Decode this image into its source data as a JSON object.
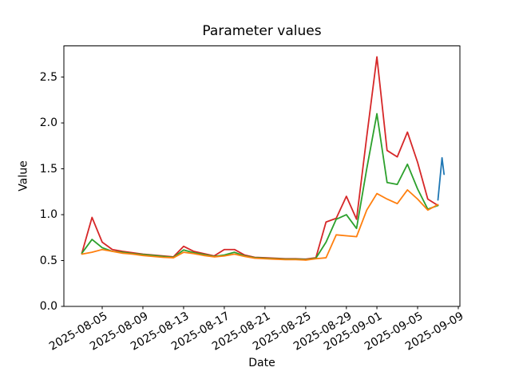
{
  "chart_data": {
    "type": "line",
    "title": "Parameter values",
    "xlabel": "Date",
    "ylabel": "Value",
    "grid": false,
    "legend": "none",
    "axes_box": true,
    "ylim": [
      0.0,
      2.84
    ],
    "y_ticks": [
      0.0,
      0.5,
      1.0,
      1.5,
      2.0,
      2.5
    ],
    "y_tick_labels": [
      "0.0",
      "0.5",
      "1.0",
      "1.5",
      "2.0",
      "2.5"
    ],
    "x_tick_labels": [
      "2025-08-05",
      "2025-08-09",
      "2025-08-13",
      "2025-08-17",
      "2025-08-21",
      "2025-08-25",
      "2025-08-29",
      "2025-09-01",
      "2025-09-05",
      "2025-09-09"
    ],
    "x_tick_days": [
      2,
      6,
      10,
      14,
      18,
      22,
      26,
      29,
      33,
      37
    ],
    "x_tick_rotation_deg": 30,
    "dates": [
      "2025-08-03",
      "2025-08-04",
      "2025-08-05",
      "2025-08-06",
      "2025-08-07",
      "2025-08-08",
      "2025-08-09",
      "2025-08-10",
      "2025-08-11",
      "2025-08-12",
      "2025-08-13",
      "2025-08-14",
      "2025-08-15",
      "2025-08-16",
      "2025-08-17",
      "2025-08-18",
      "2025-08-19",
      "2025-08-20",
      "2025-08-21",
      "2025-08-22",
      "2025-08-23",
      "2025-08-24",
      "2025-08-25",
      "2025-08-26",
      "2025-08-27",
      "2025-08-28",
      "2025-08-29",
      "2025-08-30",
      "2025-08-31",
      "2025-09-01",
      "2025-09-02",
      "2025-09-03",
      "2025-09-04",
      "2025-09-05",
      "2025-09-06",
      "2025-09-07"
    ],
    "series": [
      {
        "name": "red-series",
        "color": "#d62728",
        "values": [
          0.58,
          0.97,
          0.7,
          0.62,
          0.6,
          0.585,
          0.57,
          0.56,
          0.55,
          0.54,
          0.655,
          0.6,
          0.575,
          0.55,
          0.62,
          0.62,
          0.56,
          0.535,
          0.53,
          0.525,
          0.52,
          0.52,
          0.515,
          0.53,
          0.92,
          0.96,
          1.2,
          0.95,
          1.85,
          2.72,
          1.7,
          1.63,
          1.9,
          1.57,
          1.17,
          1.1
        ]
      },
      {
        "name": "green-series",
        "color": "#2ca02c",
        "values": [
          0.58,
          0.73,
          0.64,
          0.6,
          0.59,
          0.575,
          0.565,
          0.555,
          0.545,
          0.535,
          0.615,
          0.585,
          0.565,
          0.545,
          0.56,
          0.59,
          0.55,
          0.53,
          0.525,
          0.52,
          0.515,
          0.515,
          0.51,
          0.525,
          0.7,
          0.95,
          1.0,
          0.85,
          1.5,
          2.1,
          1.35,
          1.33,
          1.55,
          1.28,
          1.06,
          1.1
        ]
      },
      {
        "name": "orange-series",
        "color": "#ff7f0e",
        "values": [
          0.57,
          0.59,
          0.62,
          0.6,
          0.58,
          0.57,
          0.555,
          0.545,
          0.535,
          0.53,
          0.59,
          0.575,
          0.555,
          0.54,
          0.55,
          0.57,
          0.545,
          0.525,
          0.52,
          0.515,
          0.51,
          0.51,
          0.505,
          0.52,
          0.53,
          0.78,
          0.77,
          0.76,
          1.05,
          1.23,
          1.17,
          1.12,
          1.27,
          1.17,
          1.05,
          1.11
        ]
      },
      {
        "name": "blue-series",
        "color": "#1f77b4",
        "x_days": [
          35.0,
          35.4,
          35.6
        ],
        "values": [
          1.16,
          1.62,
          1.44
        ]
      }
    ]
  }
}
